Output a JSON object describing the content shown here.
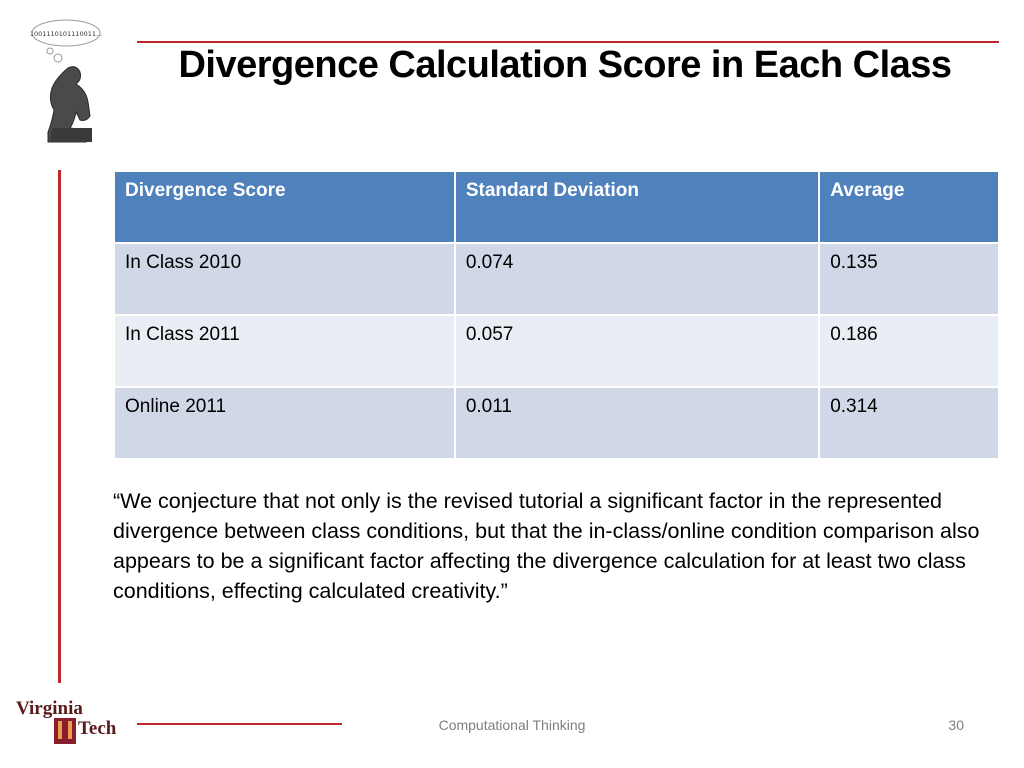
{
  "slide": {
    "title": "Divergence Calculation Score in Each Class",
    "thought_bubble_text": "1001110101110011...",
    "table": {
      "headers": [
        "Divergence Score",
        "Standard Deviation",
        "Average"
      ],
      "rows": [
        [
          "In Class 2010",
          "0.074",
          "0.135"
        ],
        [
          "In Class 2011",
          "0.057",
          "0.186"
        ],
        [
          "Online 2011",
          "0.011",
          "0.314"
        ]
      ]
    },
    "quote": "“We conjecture that not only is the revised tutorial a significant factor in the represented divergence between class conditions, but that the in-class/online condition comparison also appears to be a significant factor affecting the divergence calculation for at least two class conditions, effecting calculated creativity.”"
  },
  "footer": {
    "course": "Computational Thinking",
    "page_number": "30",
    "logo_top": "Virginia",
    "logo_bottom": "Tech"
  },
  "colors": {
    "accent_red": "#c0282d",
    "header_blue": "#4f81bd",
    "row_dark": "#d0d8e8",
    "row_light": "#e9edf4"
  }
}
